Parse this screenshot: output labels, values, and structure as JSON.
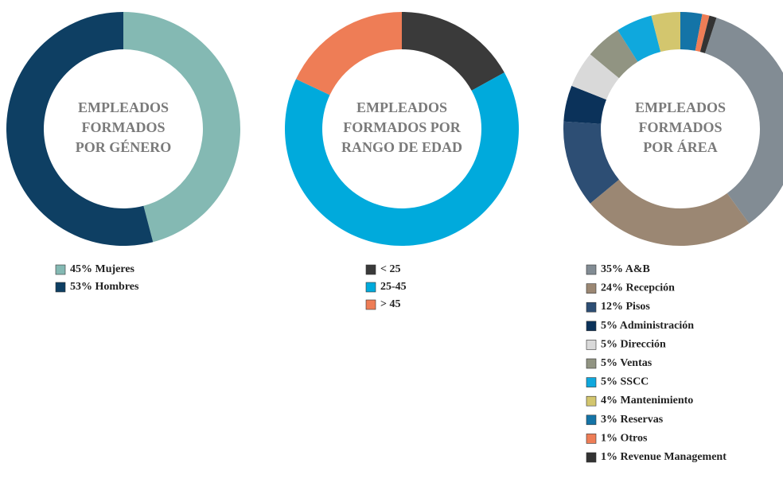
{
  "chart_data": [
    {
      "type": "donut",
      "title": [
        "EMPLEADOS",
        "FORMADOS",
        "POR GÉNERO"
      ],
      "categories": [
        "Mujeres",
        "Hombres"
      ],
      "values": [
        45,
        53
      ],
      "value_labels": [
        "45%",
        "53%"
      ],
      "colors": [
        "#84b9b3",
        "#0e3f63"
      ]
    },
    {
      "type": "donut",
      "title": [
        "EMPLEADOS",
        "FORMADOS POR",
        "RANGO DE EDAD"
      ],
      "categories": [
        "< 25",
        "25-45",
        "> 45"
      ],
      "values": [
        17,
        65,
        18
      ],
      "colors": [
        "#3a3a3a",
        "#00aadc",
        "#ee7d56"
      ]
    },
    {
      "type": "donut",
      "title": [
        "EMPLEADOS",
        "FORMADOS",
        "POR ÁREA"
      ],
      "categories": [
        "A&B",
        "Recepción",
        "Pisos",
        "Administración",
        "Dirección",
        "Ventas",
        "SSCC",
        "Mantenimiento",
        "Reservas",
        "Otros",
        "Revenue Management"
      ],
      "values": [
        35,
        24,
        12,
        5,
        5,
        5,
        5,
        4,
        3,
        1,
        1
      ],
      "value_labels": [
        "35%",
        "24%",
        "12%",
        "5%",
        "5%",
        "5%",
        "5%",
        "4%",
        "3%",
        "1%",
        "1%"
      ],
      "colors": [
        "#828c94",
        "#9b8773",
        "#2d4e74",
        "#0b325a",
        "#d9d9d9",
        "#919482",
        "#0fa8dd",
        "#d3c66e",
        "#1474a7",
        "#ee7d56",
        "#333333"
      ]
    }
  ]
}
